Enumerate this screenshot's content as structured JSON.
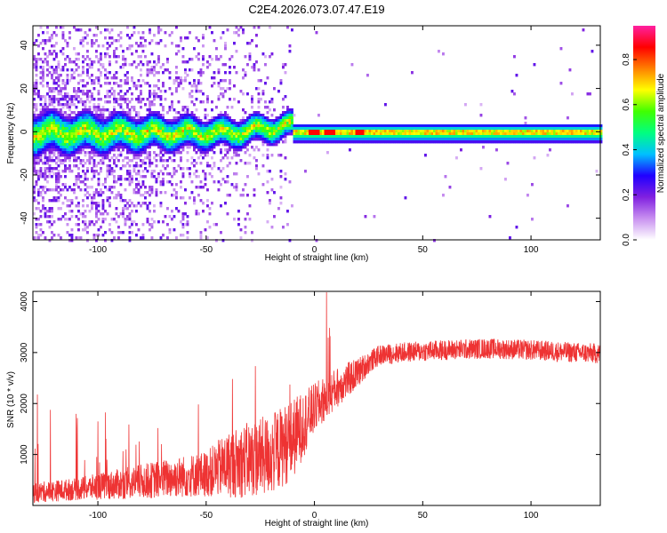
{
  "chart_data": [
    {
      "id": "spectrogram",
      "type": "heatmap",
      "title": "C2E4.2026.073.07.47.E19",
      "xlabel": "Height of straight line (km)",
      "ylabel": "Frequency (Hz)",
      "xlim": [
        -130,
        132
      ],
      "ylim": [
        -50,
        49
      ],
      "xticks": [
        -100,
        -50,
        0,
        50,
        100
      ],
      "xtick_labels": [
        "-100",
        "-50",
        "0",
        "50",
        "100"
      ],
      "yticks": [
        40,
        20,
        0,
        -20,
        -40
      ],
      "ytick_labels": [
        "40",
        "20",
        "0",
        "-20",
        "-40"
      ],
      "colorbar": {
        "label": "Normalized spectral amplitude",
        "range": [
          0,
          0.95
        ],
        "ticks": [
          0.0,
          0.2,
          0.4,
          0.6,
          0.8
        ],
        "tick_labels": [
          "0.0",
          "0.2",
          "0.4",
          "0.6",
          "0.8"
        ],
        "colormap": [
          "#ffffff",
          "#c890f0",
          "#8020e0",
          "#2000ff",
          "#00c0ff",
          "#00ff80",
          "#40ff00",
          "#ffff00",
          "#ff8000",
          "#ff0000",
          "#ff20a0"
        ]
      },
      "description_band": {
        "center_hz": 0,
        "noisy_region_km": [
          -130,
          -10
        ],
        "clean_region_km": [
          -10,
          132
        ]
      }
    },
    {
      "id": "snr",
      "type": "line",
      "xlabel": "Height of straight line (km)",
      "ylabel": "SNR (10 * v/v)",
      "xlim": [
        -130,
        132
      ],
      "ylim": [
        0,
        4200
      ],
      "xticks": [
        -100,
        -50,
        0,
        50,
        100
      ],
      "xtick_labels": [
        "-100",
        "-50",
        "0",
        "50",
        "100"
      ],
      "yticks": [
        1000,
        2000,
        3000,
        4000
      ],
      "ytick_labels": [
        "1000",
        "2000",
        "3000",
        "4000"
      ],
      "series": [
        {
          "name": "SNR",
          "color": "#ee3333",
          "envelope_x": [
            -130,
            -110,
            -90,
            -70,
            -50,
            -40,
            -30,
            -20,
            -10,
            -5,
            0,
            5,
            10,
            20,
            25,
            30,
            40,
            60,
            80,
            100,
            120,
            132
          ],
          "envelope_mean": [
            250,
            320,
            420,
            520,
            620,
            800,
            900,
            1000,
            1300,
            1600,
            1900,
            2100,
            2300,
            2600,
            2800,
            2950,
            3000,
            3050,
            3080,
            3050,
            3000,
            2980
          ],
          "envelope_spread": [
            200,
            220,
            300,
            380,
            450,
            650,
            750,
            800,
            800,
            650,
            500,
            450,
            400,
            300,
            220,
            200,
            200,
            200,
            200,
            200,
            200,
            200
          ]
        }
      ]
    }
  ]
}
